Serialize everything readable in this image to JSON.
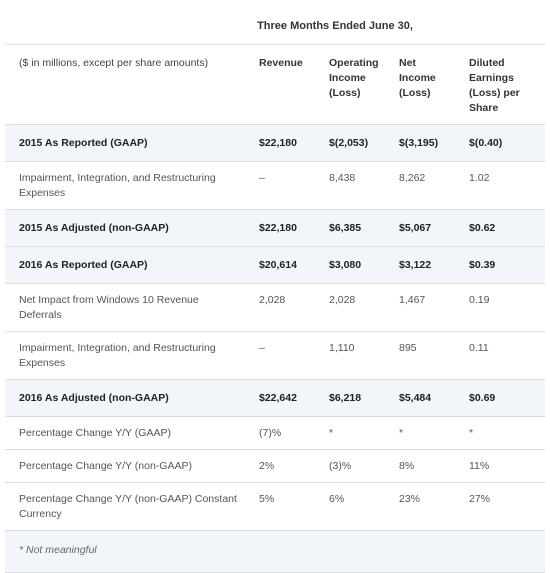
{
  "header": {
    "title": "Three Months Ended June 30,"
  },
  "columns": {
    "description": "($ in millions, except per share amounts)",
    "revenue": "Revenue",
    "operating_income": "Operating Income (Loss)",
    "net_income": "Net Income (Loss)",
    "eps": "Diluted Earnings (Loss) per Share"
  },
  "rows": [
    {
      "label": "2015 As Reported (GAAP)",
      "revenue": "$22,180",
      "operating_income": "$(2,053)",
      "net_income": "$(3,195)",
      "eps": "$(0.40)"
    },
    {
      "label": "Impairment, Integration, and Restructuring Expenses",
      "revenue": "–",
      "operating_income": "8,438",
      "net_income": "8,262",
      "eps": "1.02"
    },
    {
      "label": "2015 As Adjusted (non-GAAP)",
      "revenue": "$22,180",
      "operating_income": "$6,385",
      "net_income": "$5,067",
      "eps": "$0.62"
    },
    {
      "label": "2016 As Reported (GAAP)",
      "revenue": "$20,614",
      "operating_income": "$3,080",
      "net_income": "$3,122",
      "eps": "$0.39"
    },
    {
      "label": "Net Impact from Windows 10 Revenue Deferrals",
      "revenue": "2,028",
      "operating_income": "2,028",
      "net_income": "1,467",
      "eps": "0.19"
    },
    {
      "label": "Impairment, Integration, and Restructuring Expenses",
      "revenue": "–",
      "operating_income": "1,110",
      "net_income": "895",
      "eps": "0.11"
    },
    {
      "label": "2016 As Adjusted (non-GAAP)",
      "revenue": "$22,642",
      "operating_income": "$6,218",
      "net_income": "$5,484",
      "eps": "$0.69"
    },
    {
      "label": "Percentage Change Y/Y (GAAP)",
      "revenue": "(7)%",
      "operating_income": "*",
      "net_income": "*",
      "eps": "*"
    },
    {
      "label": "Percentage Change Y/Y (non-GAAP)",
      "revenue": "2%",
      "operating_income": "(3)%",
      "net_income": "8%",
      "eps": "11%"
    },
    {
      "label": "Percentage Change Y/Y (non-GAAP) Constant Currency",
      "revenue": "5%",
      "operating_income": "6%",
      "net_income": "23%",
      "eps": "27%"
    }
  ],
  "footnote": "* Not meaningful"
}
